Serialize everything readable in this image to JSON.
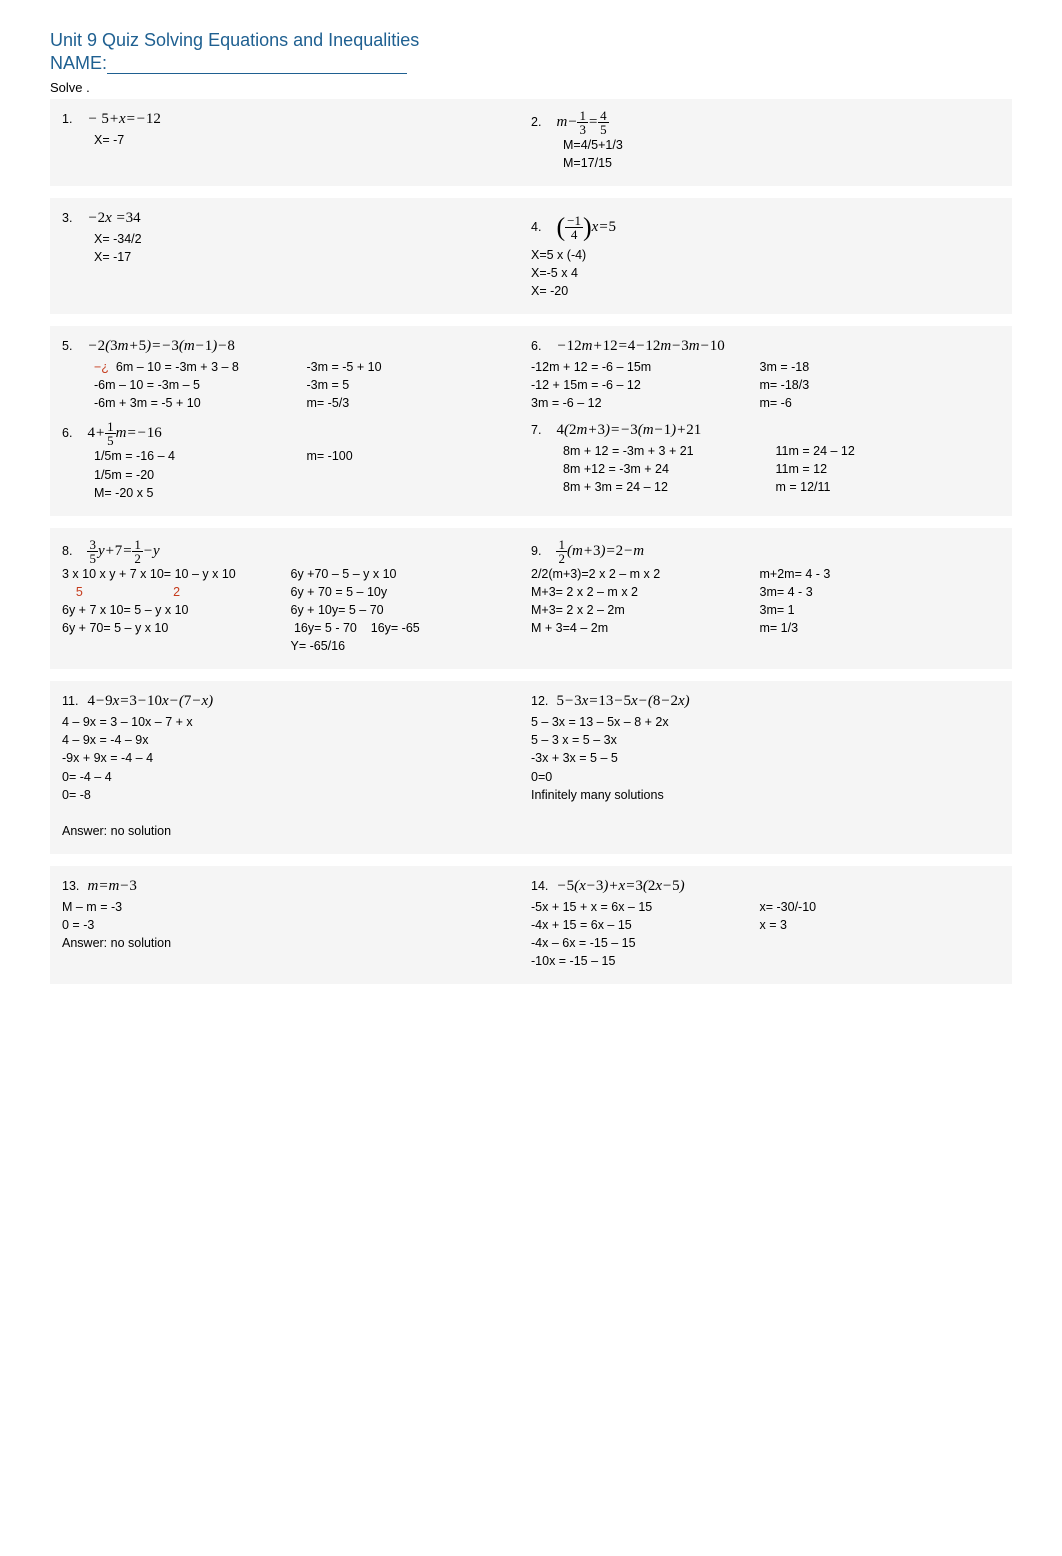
{
  "header": {
    "title": "Unit 9 Quiz Solving Equations and Inequalities",
    "name_label": "NAME:",
    "solve_label": "Solve ."
  },
  "rows": [
    {
      "left": {
        "num": "1.",
        "eq_html": "− <span class='n'>5</span>+<i>x</i>=−<span class='n'>12</span>",
        "work": [
          "X= -7"
        ]
      },
      "right": {
        "num": "2.",
        "eq_html": "<i>m</i>−<span class='frac'><span class='t'>1</span><span class='b'>3</span></span>=<span class='frac'><span class='t'>4</span><span class='b'>5</span></span>",
        "work": [
          "M=4/5+1/3",
          "M=17/15"
        ]
      }
    },
    {
      "left": {
        "num": "3.",
        "eq_html": "−<span class='n'>2</span><i>x</i> =<span class='n'>34</span>",
        "work": [
          "X= -34/2",
          "X= -17"
        ]
      },
      "right": {
        "num": "4.",
        "eq_html": "<span class='big-paren'>(</span><span class='frac'><span class='t'>−1</span><span class='b'>4</span></span><span class='big-paren'>)</span><i>x</i>=<span class='n'>5</span>",
        "work_noindent": [
          "X=5 x (-4)",
          "X=-5 x 4",
          "X= -20"
        ]
      }
    },
    {
      "left": {
        "num": "5.",
        "eq_html": "−<span class='n'>2</span>(<span class='n'>3</span><i>m</i>+<span class='n'>5</span>)=−<span class='n'>3</span>(<i>m</i>−<span class='n'>1</span>)−<span class='n'>8</span>",
        "two_col": {
          "left_lines": [
            "<span class='red'>−¿</span>&nbsp;&nbsp;6m – 10 = -3m + 3 – 8",
            "-6m – 10 = -3m – 5",
            "-6m + 3m = -5 + 10"
          ],
          "right_lines": [
            "-3m = -5 + 10",
            "-3m = 5",
            "m= -5/3"
          ]
        },
        "second": {
          "num": "6.",
          "eq_html": "<span class='n'>4</span>+<span class='frac'><span class='t'>1</span><span class='b'>5</span></span><i>m</i>=−<span class='n'>16</span>",
          "two_col": {
            "left_lines": [
              "1/5m = -16 – 4",
              "1/5m = -20",
              "M= -20 x 5"
            ],
            "right_lines": [
              "m= -100",
              "",
              ""
            ]
          }
        }
      },
      "right": {
        "num": "6.",
        "eq_html": "−<span class='n'>12</span><i>m</i>+<span class='n'>12</span>=<span class='n'>4</span>−<span class='n'>12</span><i>m</i>−<span class='n'>3</span><i>m</i>−<span class='n'>10</span>",
        "two_col_noindent": {
          "left_lines": [
            "-12m + 12 = -6 – 15m",
            "-12 + 15m = -6 – 12",
            "3m = -6 – 12"
          ],
          "right_lines": [
            "3m = -18",
            "m= -18/3",
            "m= -6"
          ]
        },
        "second": {
          "num": "7.",
          "eq_html": "<span class='n'>4</span>(<span class='n'>2</span><i>m</i>+<span class='n'>3</span>)=−<span class='n'>3</span>(<i>m</i>−<span class='n'>1</span>)+<span class='n'>21</span>",
          "two_col": {
            "left_lines": [
              "8m + 12 = -3m + 3 + 21",
              "8m +12 = -3m + 24",
              "8m + 3m = 24 – 12"
            ],
            "right_lines": [
              "11m = 24 – 12",
              "11m = 12",
              "m = 12/11"
            ]
          }
        }
      }
    },
    {
      "left": {
        "num": "8.",
        "eq_html": "<span class='frac'><span class='t'>3</span><span class='b'>5</span></span><i>y</i>+<span class='n'>7</span>=<span class='frac'><span class='t'>1</span><span class='b'>2</span></span>−<i>y</i>",
        "two_col_noindent": {
          "left_lines": [
            "3 x 10 x y + 7 x 10= 10 – y x 10",
            "&nbsp;&nbsp;&nbsp;&nbsp;<span class='red'>5</span>&nbsp;&nbsp;&nbsp;&nbsp;&nbsp;&nbsp;&nbsp;&nbsp;&nbsp;&nbsp;&nbsp;&nbsp;&nbsp;&nbsp;&nbsp;&nbsp;&nbsp;&nbsp;&nbsp;&nbsp;&nbsp;&nbsp;&nbsp;&nbsp;&nbsp;&nbsp;<span class='red'>2</span>",
            "6y + 7 x 10= 5 – y x 10",
            "6y + 70= 5 – y x 10"
          ],
          "right_lines": [
            "6y +70 – 5 – y x 10",
            "6y + 70 = 5 – 10y",
            "6y + 10y= 5 – 70",
            "&nbsp;16y= 5  - 70&nbsp;&nbsp;&nbsp;&nbsp;16y= -65",
            "Y= -65/16"
          ]
        }
      },
      "right": {
        "num": "9.",
        "eq_html": "<span class='frac'><span class='t'>1</span><span class='b'>2</span></span>(<i>m</i>+<span class='n'>3</span>)=<span class='n'>2</span>−<i>m</i>",
        "two_col_noindent": {
          "left_lines": [
            "2/2(m+3)=2 x 2 – m x 2",
            "M+3= 2 x 2 – m x 2",
            "M+3= 2 x 2 – 2m",
            "M + 3=4 – 2m"
          ],
          "right_lines": [
            "m+2m= 4 - 3",
            "3m= 4 - 3",
            "3m= 1",
            "m= 1/3"
          ]
        }
      }
    },
    {
      "left": {
        "num": "11.",
        "eq_html": "<span class='n'>4</span>−<span class='n'>9</span><i>x</i>=<span class='n'>3</span>−<span class='n'>10</span><i>x</i>−(<span class='n'>7</span>−<i>x</i>)",
        "work_noindent": [
          "4 – 9x = 3 – 10x – 7 + x",
          "4 – 9x = -4 – 9x",
          "-9x + 9x = -4 – 4",
          "0= -4 – 4",
          "0= -8",
          "",
          "Answer: no solution"
        ]
      },
      "right": {
        "num": "12.",
        "eq_html": "<span class='n'>5</span>−<span class='n'>3</span><i>x</i>=<span class='n'>13</span>−<span class='n'>5</span><i>x</i>−(<span class='n'>8</span>−<span class='n'>2</span><i>x</i>)",
        "work_noindent": [
          "5 – 3x = 13 – 5x – 8 + 2x",
          "5 – 3 x = 5 – 3x",
          "-3x + 3x = 5 – 5",
          "0=0",
          "Infinitely many solutions"
        ]
      }
    },
    {
      "left": {
        "num": "13.",
        "eq_html": "<i>m</i>=<i>m</i>−<span class='n'>3</span>",
        "work_noindent": [
          "M – m = -3",
          "0 = -3",
          "Answer: no solution"
        ]
      },
      "right": {
        "num": "14.",
        "eq_html": "−<span class='n'>5</span>(<i>x</i>−<span class='n'>3</span>)+<i>x</i>=<span class='n'>3</span>(<span class='n'>2</span><i>x</i>−<span class='n'>5</span>)",
        "two_col_noindent": {
          "left_lines": [
            "-5x + 15 + x = 6x – 15",
            "-4x + 15 = 6x – 15",
            "-4x – 6x = -15 – 15",
            "-10x = -15 – 15"
          ],
          "right_lines": [
            "x= -30/-10",
            "x = 3",
            "",
            ""
          ]
        }
      }
    }
  ]
}
